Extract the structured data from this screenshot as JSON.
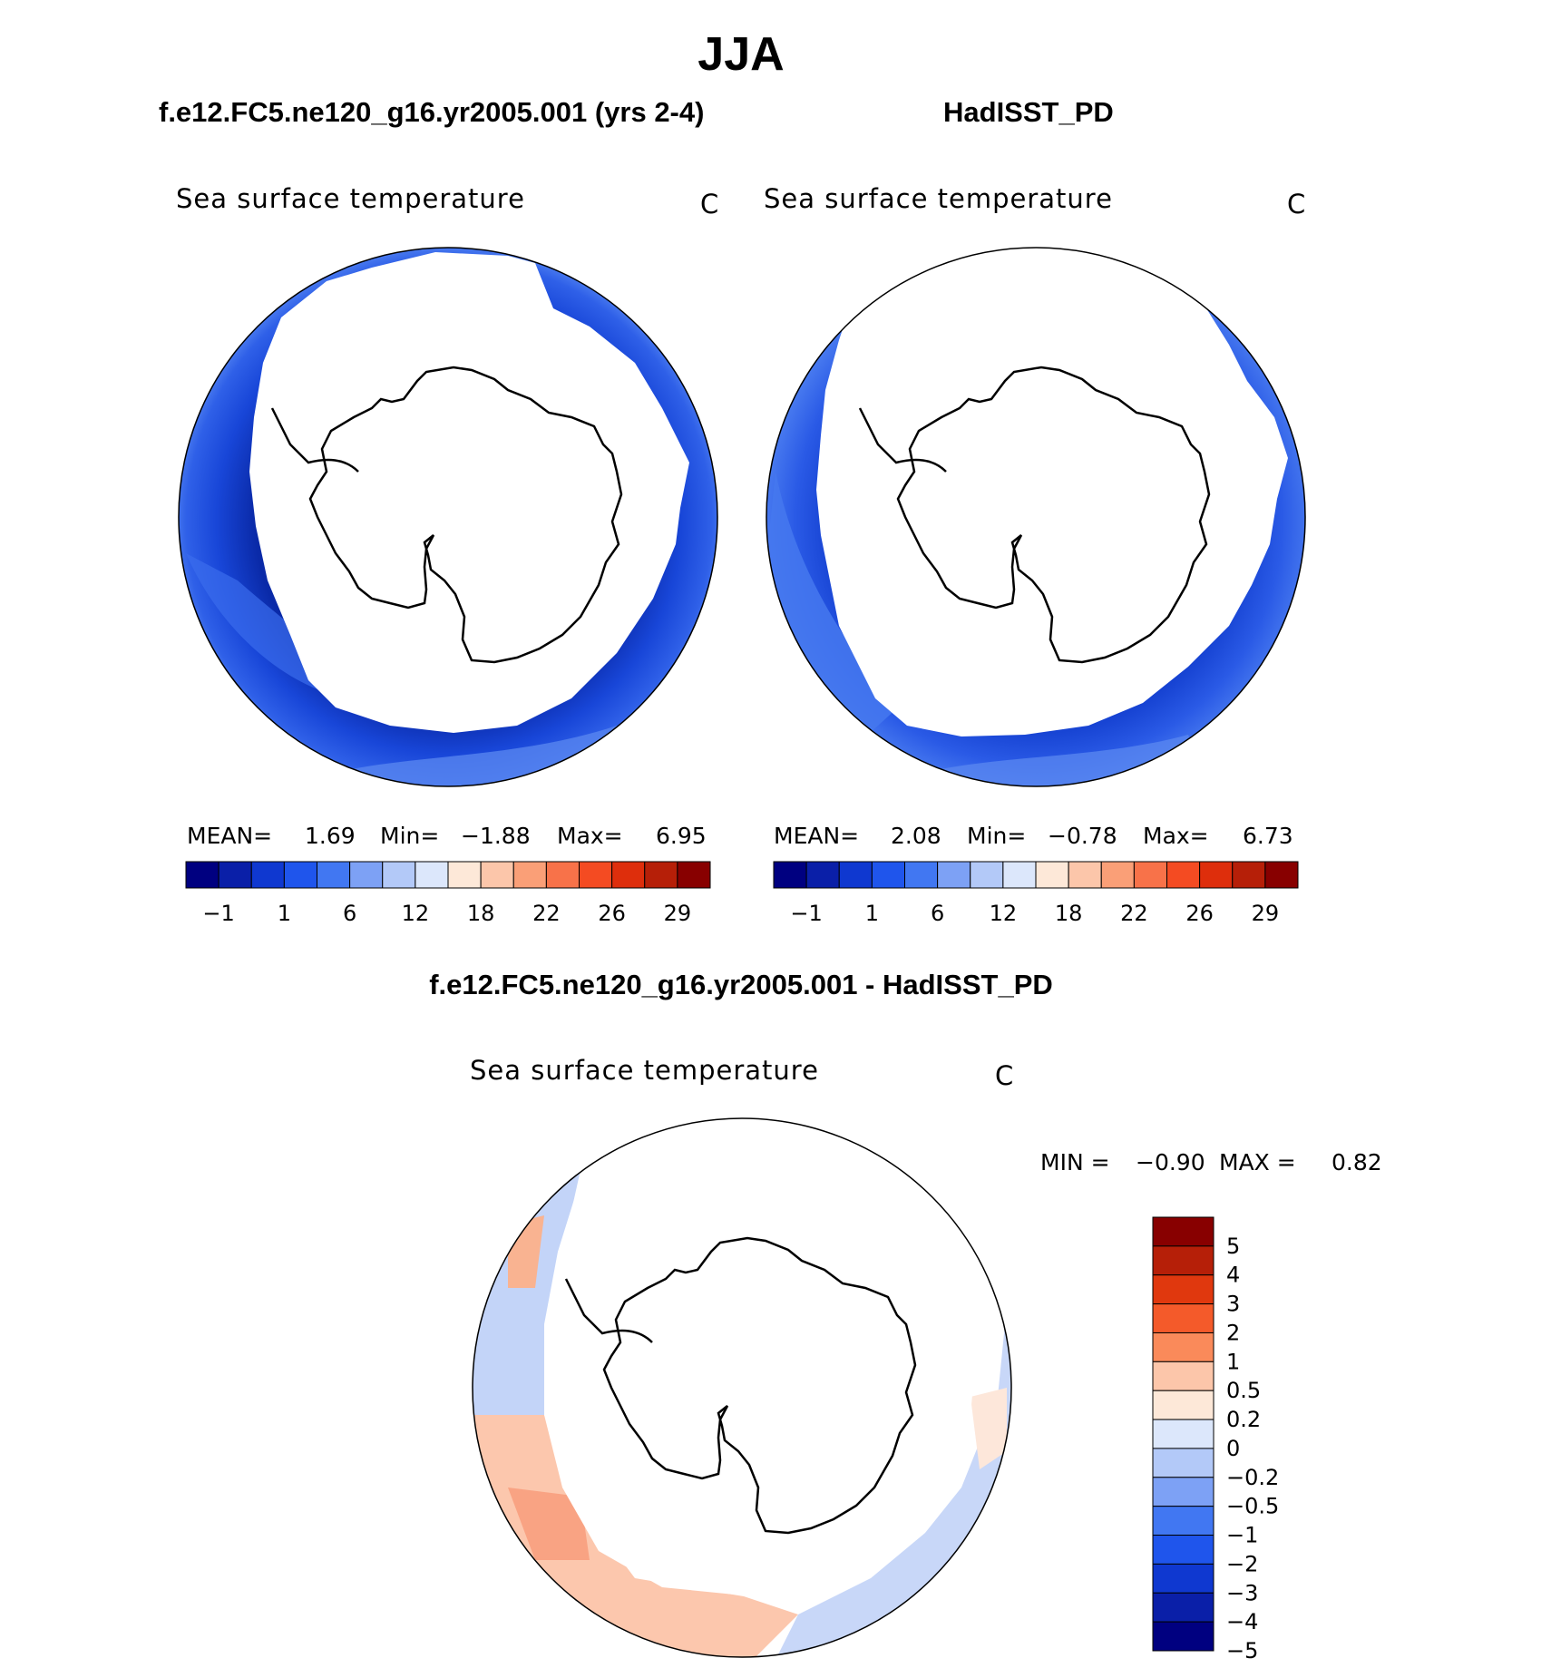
{
  "title": "JJA",
  "colors": {
    "ocean_dark": "#0a2aa8",
    "ocean_mid": "#1846d8",
    "ocean_light": "#3e72f0",
    "ocean_pale": "#6a97f2",
    "ice": "#ffffff",
    "land_outline": "#000000"
  },
  "panels": {
    "model": {
      "case_title": "f.e12.FC5.ne120_g16.yr2005.001 (yrs 2-4)",
      "var_name": "Sea surface temperature",
      "units": "C",
      "stats": {
        "mean_label": "MEAN=",
        "mean": "1.69",
        "min_label": "Min=",
        "min": "−1.88",
        "max_label": "Max=",
        "max": "6.95"
      }
    },
    "obs": {
      "case_title": "HadISST_PD",
      "var_name": "Sea surface temperature",
      "units": "C",
      "stats": {
        "mean_label": "MEAN=",
        "mean": "2.08",
        "min_label": "Min=",
        "min": "−0.78",
        "max_label": "Max=",
        "max": "6.73"
      }
    },
    "diff": {
      "case_title": "f.e12.FC5.ne120_g16.yr2005.001 - HadISST_PD",
      "var_name": "Sea surface temperature",
      "units": "C",
      "stats": {
        "min_label": "MIN =",
        "min": "−0.90",
        "max_label": "MAX =",
        "max": "0.82"
      }
    }
  },
  "colorbar_abs": {
    "colors": [
      "#000080",
      "#0a1fa8",
      "#0f38d0",
      "#1f55ec",
      "#4177f2",
      "#7da1f5",
      "#b3c9f8",
      "#dce7fb",
      "#fde8d8",
      "#fcc6aa",
      "#fa9f77",
      "#f87249",
      "#f44b22",
      "#de2e0c",
      "#b61f08",
      "#880000"
    ],
    "tick_labels": [
      "−1",
      "1",
      "6",
      "12",
      "18",
      "22",
      "26",
      "29"
    ]
  },
  "colorbar_diff": {
    "colors": [
      "#000080",
      "#0a1fa8",
      "#0f38d0",
      "#1f55ec",
      "#4177f2",
      "#7da1f5",
      "#b3c9f8",
      "#dce7fb",
      "#fde8d8",
      "#fcc6aa",
      "#fa8a5a",
      "#f45a2a",
      "#e0380e",
      "#b61f08",
      "#880000"
    ],
    "tick_labels": [
      "5",
      "4",
      "3",
      "2",
      "1",
      "0.5",
      "0.2",
      "0",
      "−0.2",
      "−0.5",
      "−1",
      "−2",
      "−3",
      "−4",
      "−5"
    ]
  },
  "chart_data": [
    {
      "type": "heatmap",
      "projection": "south-polar-stereographic",
      "title": "f.e12.FC5.ne120_g16.yr2005.001 (yrs 2-4)",
      "variable": "Sea surface temperature",
      "units": "C",
      "mean": 1.69,
      "min": -1.88,
      "max": 6.95,
      "contour_levels": [
        -1,
        1,
        6,
        12,
        18,
        22,
        26,
        29
      ]
    },
    {
      "type": "heatmap",
      "projection": "south-polar-stereographic",
      "title": "HadISST_PD",
      "variable": "Sea surface temperature",
      "units": "C",
      "mean": 2.08,
      "min": -0.78,
      "max": 6.73,
      "contour_levels": [
        -1,
        1,
        6,
        12,
        18,
        22,
        26,
        29
      ]
    },
    {
      "type": "heatmap",
      "projection": "south-polar-stereographic",
      "title": "f.e12.FC5.ne120_g16.yr2005.001 - HadISST_PD",
      "variable": "Sea surface temperature",
      "units": "C",
      "min": -0.9,
      "max": 0.82,
      "contour_levels": [
        -5,
        -4,
        -3,
        -2,
        -1,
        -0.5,
        -0.2,
        0,
        0.2,
        0.5,
        1,
        2,
        3,
        4,
        5
      ]
    }
  ]
}
